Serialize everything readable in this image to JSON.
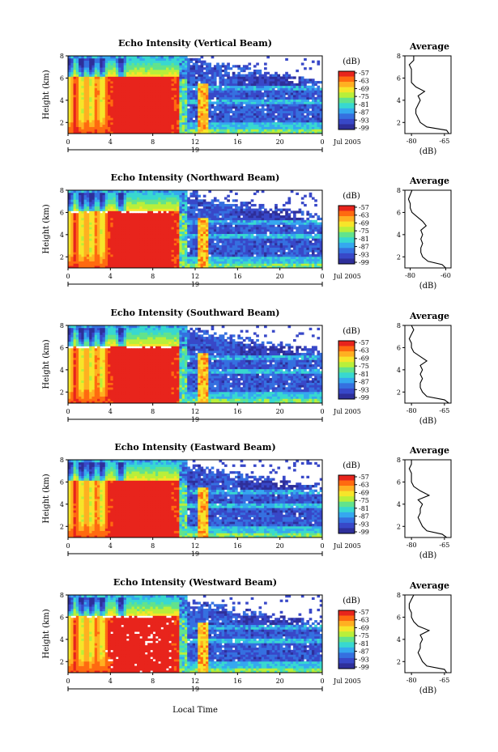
{
  "figure": {
    "xlabel_bottom": "Local Time",
    "date_label": "Jul 2005",
    "day_label": "19"
  },
  "colorbar": {
    "unit": "(dB)",
    "ticks": [
      "-57",
      "-63",
      "-69",
      "-75",
      "-81",
      "-87",
      "-93",
      "-99"
    ],
    "colors": [
      "#e8241c",
      "#ff6a10",
      "#ffb021",
      "#f6e52a",
      "#b9ef3a",
      "#62e38c",
      "#38d8d0",
      "#35a8ef",
      "#3570e0",
      "#3848c8",
      "#2e2f9a"
    ]
  },
  "chart_data": [
    {
      "type": "heatmap",
      "title": "Echo Intensity (Vertical Beam)",
      "ylabel": "Height (km)",
      "xlim": [
        0,
        24
      ],
      "ylim": [
        1,
        8
      ],
      "x_ticks": [
        "0",
        "4",
        "8",
        "12",
        "16",
        "20",
        "0"
      ],
      "y_ticks": [
        "2",
        "4",
        "6",
        "8"
      ],
      "beam": "vertical",
      "profile": {
        "title": "Average",
        "xlabel": "(dB)",
        "x_ticks": [
          "-80",
          "-65"
        ],
        "xlim": [
          -83,
          -62
        ],
        "y_ticks": [
          "2",
          "4",
          "6",
          "8"
        ],
        "ylim": [
          1,
          8
        ],
        "height": [
          1.0,
          1.3,
          1.6,
          2.0,
          2.4,
          2.8,
          3.2,
          3.6,
          4.0,
          4.4,
          4.8,
          5.2,
          5.6,
          6.0,
          6.4,
          6.8,
          7.2,
          7.6,
          8.0
        ],
        "value": [
          -63,
          -64,
          -73,
          -76,
          -77,
          -78,
          -78,
          -77,
          -76,
          -77,
          -74,
          -78,
          -80,
          -80,
          -80,
          -80,
          -81,
          -79,
          -79
        ]
      }
    },
    {
      "type": "heatmap",
      "title": "Echo Intensity (Northward Beam)",
      "ylabel": "Height (km)",
      "xlim": [
        0,
        24
      ],
      "ylim": [
        1,
        8
      ],
      "x_ticks": [
        "0",
        "4",
        "8",
        "12",
        "16",
        "20",
        "0"
      ],
      "y_ticks": [
        "2",
        "4",
        "6",
        "8"
      ],
      "beam": "northward",
      "profile": {
        "title": "Average",
        "xlabel": "(dB)",
        "x_ticks": [
          "-80",
          "-60"
        ],
        "xlim": [
          -83,
          -57
        ],
        "y_ticks": [
          "2",
          "4",
          "6",
          "8"
        ],
        "ylim": [
          1,
          8
        ],
        "height": [
          1.0,
          1.3,
          1.6,
          2.0,
          2.4,
          2.8,
          3.2,
          3.6,
          4.0,
          4.4,
          4.8,
          5.2,
          5.6,
          6.0,
          6.4,
          6.8,
          7.2,
          7.6,
          8.0
        ],
        "value": [
          -60,
          -62,
          -70,
          -73,
          -74,
          -74,
          -73,
          -74,
          -73,
          -74,
          -71,
          -73,
          -76,
          -79,
          -80,
          -80,
          -81,
          -80,
          -79
        ]
      }
    },
    {
      "type": "heatmap",
      "title": "Echo Intensity (Southward Beam)",
      "ylabel": "Height (km)",
      "xlim": [
        0,
        24
      ],
      "ylim": [
        1,
        8
      ],
      "x_ticks": [
        "0",
        "4",
        "8",
        "12",
        "16",
        "20",
        "0"
      ],
      "y_ticks": [
        "2",
        "4",
        "6",
        "8"
      ],
      "beam": "southward",
      "profile": {
        "title": "Average",
        "xlabel": "(dB)",
        "x_ticks": [
          "-80",
          "-65"
        ],
        "xlim": [
          -83,
          -62
        ],
        "y_ticks": [
          "2",
          "4",
          "6",
          "8"
        ],
        "ylim": [
          1,
          8
        ],
        "height": [
          1.0,
          1.3,
          1.6,
          2.0,
          2.4,
          2.8,
          3.2,
          3.6,
          4.0,
          4.4,
          4.8,
          5.2,
          5.6,
          6.0,
          6.4,
          6.8,
          7.2,
          7.6,
          8.0
        ],
        "value": [
          -63,
          -65,
          -73,
          -75,
          -76,
          -76,
          -75,
          -76,
          -75,
          -76,
          -73,
          -76,
          -79,
          -80,
          -80,
          -81,
          -80,
          -79,
          -80
        ]
      }
    },
    {
      "type": "heatmap",
      "title": "Echo Intensity (Eastward Beam)",
      "ylabel": "Height (km)",
      "xlim": [
        0,
        24
      ],
      "ylim": [
        1,
        8
      ],
      "x_ticks": [
        "0",
        "4",
        "8",
        "12",
        "16",
        "20",
        "0"
      ],
      "y_ticks": [
        "2",
        "4",
        "6",
        "8"
      ],
      "beam": "eastward",
      "profile": {
        "title": "Average",
        "xlabel": "(dB)",
        "x_ticks": [
          "-80",
          "-65"
        ],
        "xlim": [
          -83,
          -62
        ],
        "y_ticks": [
          "2",
          "4",
          "6",
          "8"
        ],
        "ylim": [
          1,
          8
        ],
        "height": [
          1.0,
          1.3,
          1.6,
          2.0,
          2.4,
          2.8,
          3.2,
          3.6,
          4.0,
          4.4,
          4.8,
          5.2,
          5.6,
          6.0,
          6.4,
          6.8,
          7.2,
          7.6,
          8.0
        ],
        "value": [
          -64,
          -66,
          -73,
          -75,
          -76,
          -77,
          -76,
          -76,
          -75,
          -77,
          -72,
          -76,
          -79,
          -80,
          -80,
          -80,
          -81,
          -80,
          -80
        ]
      }
    },
    {
      "type": "heatmap",
      "title": "Echo Intensity (Westward Beam)",
      "ylabel": "Height (km)",
      "xlim": [
        0,
        24
      ],
      "ylim": [
        1,
        8
      ],
      "x_ticks": [
        "0",
        "4",
        "8",
        "12",
        "16",
        "20",
        "0"
      ],
      "y_ticks": [
        "2",
        "4",
        "6",
        "8"
      ],
      "beam": "westward",
      "profile": {
        "title": "Average",
        "xlabel": "(dB)",
        "x_ticks": [
          "-80",
          "-65"
        ],
        "xlim": [
          -83,
          -62
        ],
        "y_ticks": [
          "2",
          "4",
          "6",
          "8"
        ],
        "ylim": [
          1,
          8
        ],
        "height": [
          1.0,
          1.3,
          1.6,
          2.0,
          2.4,
          2.8,
          3.2,
          3.6,
          4.0,
          4.4,
          4.8,
          5.2,
          5.6,
          6.0,
          6.4,
          6.8,
          7.2,
          7.6,
          8.0
        ],
        "value": [
          -64,
          -65,
          -73,
          -75,
          -76,
          -77,
          -76,
          -76,
          -75,
          -76,
          -72,
          -77,
          -79,
          -80,
          -80,
          -81,
          -81,
          -80,
          -79
        ]
      }
    }
  ]
}
